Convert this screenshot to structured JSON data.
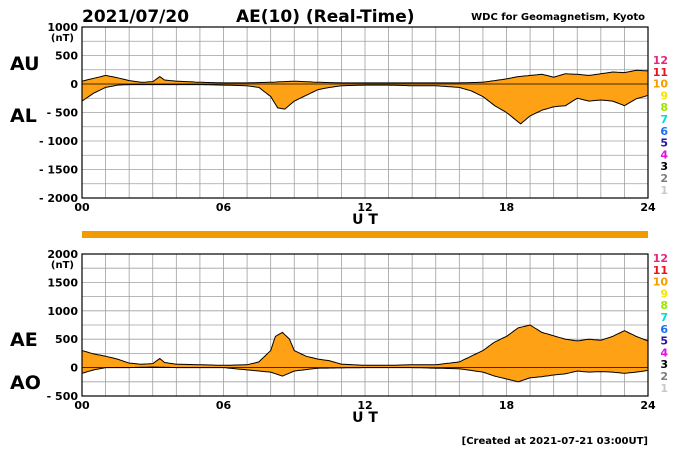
{
  "header": {
    "date": "2021/07/20",
    "title": "AE(10) (Real-Time)",
    "organization": "WDC for Geomagnetism, Kyoto"
  },
  "footer": {
    "created": "[Created at 2021-07-21 03:00UT]"
  },
  "legend": {
    "items": [
      {
        "label": "12",
        "color": "#e8267e"
      },
      {
        "label": "11",
        "color": "#e8141e"
      },
      {
        "label": "10",
        "color": "#f59c00"
      },
      {
        "label": "9",
        "color": "#f5e600"
      },
      {
        "label": "8",
        "color": "#9ee600"
      },
      {
        "label": "7",
        "color": "#00dcdc"
      },
      {
        "label": "6",
        "color": "#1e6ef5"
      },
      {
        "label": "5",
        "color": "#2814a0"
      },
      {
        "label": "4",
        "color": "#dc14dc"
      },
      {
        "label": "3",
        "color": "#000000"
      },
      {
        "label": "2",
        "color": "#7d7d7d"
      },
      {
        "label": "1",
        "color": "#c8c8c8"
      }
    ]
  },
  "colors": {
    "fill": "#ffa114",
    "grid": "#a0a0a0",
    "line": "#000000",
    "bar": "#f29a00"
  },
  "chart_data": [
    {
      "type": "area",
      "panel": "AU/AL",
      "upper_label": "AU",
      "lower_label": "AL",
      "unit": "(nT)",
      "xlabel": "U T",
      "xlim": [
        0,
        24
      ],
      "ylim": [
        -2000,
        1000
      ],
      "xticks": [
        "00",
        "06",
        "12",
        "18",
        "24"
      ],
      "yticks": [
        "1000",
        "500",
        "0",
        "- 500",
        "- 1000",
        "- 1500",
        "- 2000"
      ],
      "grid": true,
      "series": [
        {
          "name": "AU",
          "x": [
            0,
            0.5,
            1,
            1.5,
            2,
            2.5,
            3,
            3.3,
            3.5,
            4,
            5,
            6,
            7,
            8,
            8.5,
            9,
            9.5,
            10,
            11,
            12,
            13,
            14,
            15,
            16,
            17,
            17.5,
            18,
            18.5,
            19,
            19.5,
            20,
            20.5,
            21,
            21.5,
            22,
            22.5,
            23,
            23.5,
            24
          ],
          "values": [
            50,
            100,
            150,
            110,
            60,
            30,
            40,
            130,
            70,
            50,
            30,
            20,
            20,
            30,
            40,
            50,
            40,
            30,
            20,
            20,
            20,
            20,
            20,
            20,
            30,
            60,
            90,
            130,
            150,
            170,
            120,
            180,
            170,
            150,
            180,
            210,
            200,
            240,
            230
          ]
        },
        {
          "name": "AL",
          "x": [
            0,
            0.5,
            1,
            1.5,
            2,
            2.5,
            3,
            3.5,
            4,
            5,
            6,
            7,
            7.5,
            8,
            8.3,
            8.6,
            9,
            9.5,
            10,
            10.5,
            11,
            12,
            13,
            14,
            15,
            16,
            16.5,
            17,
            17.5,
            18,
            18.3,
            18.6,
            19,
            19.5,
            20,
            20.5,
            21,
            21.5,
            22,
            22.5,
            23,
            23.5,
            24
          ],
          "values": [
            -300,
            -160,
            -60,
            -20,
            -10,
            -10,
            -10,
            -10,
            -10,
            -10,
            -20,
            -30,
            -60,
            -220,
            -420,
            -440,
            -300,
            -200,
            -100,
            -60,
            -30,
            -20,
            -20,
            -30,
            -30,
            -60,
            -120,
            -220,
            -380,
            -500,
            -600,
            -700,
            -560,
            -460,
            -400,
            -380,
            -250,
            -300,
            -280,
            -300,
            -380,
            -260,
            -200
          ]
        }
      ]
    },
    {
      "type": "area",
      "panel": "AE/AO",
      "upper_label": "AE",
      "lower_label": "AO",
      "unit": "(nT)",
      "xlabel": "U T",
      "xlim": [
        0,
        24
      ],
      "ylim": [
        -500,
        2000
      ],
      "xticks": [
        "00",
        "06",
        "12",
        "18",
        "24"
      ],
      "yticks": [
        "2000",
        "1500",
        "1000",
        "500",
        "0",
        "- 500"
      ],
      "grid": true,
      "series": [
        {
          "name": "AE",
          "x": [
            0,
            0.5,
            1,
            1.5,
            2,
            2.5,
            3,
            3.3,
            3.5,
            4,
            5,
            6,
            7,
            7.5,
            8,
            8.2,
            8.5,
            8.8,
            9,
            9.5,
            10,
            10.5,
            11,
            12,
            13,
            14,
            15,
            16,
            16.5,
            17,
            17.5,
            18,
            18.5,
            19,
            19.5,
            20,
            20.5,
            21,
            21.5,
            22,
            22.5,
            23,
            23.5,
            24
          ],
          "values": [
            300,
            240,
            200,
            150,
            80,
            60,
            70,
            160,
            90,
            60,
            50,
            40,
            50,
            100,
            300,
            550,
            620,
            500,
            300,
            200,
            150,
            120,
            60,
            40,
            40,
            50,
            50,
            100,
            200,
            300,
            450,
            550,
            700,
            750,
            620,
            560,
            500,
            470,
            500,
            480,
            550,
            650,
            550,
            470
          ]
        },
        {
          "name": "AO",
          "x": [
            0,
            0.5,
            1,
            1.5,
            2,
            3,
            4,
            6,
            8,
            8.5,
            9,
            10,
            12,
            14,
            16,
            17,
            17.5,
            18,
            18.5,
            19,
            19.5,
            20,
            20.5,
            21,
            21.5,
            22,
            22.5,
            23,
            23.5,
            24
          ],
          "values": [
            -100,
            -40,
            0,
            0,
            0,
            10,
            0,
            0,
            -80,
            -150,
            -60,
            -10,
            0,
            0,
            -20,
            -80,
            -150,
            -200,
            -250,
            -180,
            -160,
            -130,
            -110,
            -60,
            -80,
            -70,
            -80,
            -100,
            -80,
            -50
          ]
        }
      ]
    }
  ]
}
